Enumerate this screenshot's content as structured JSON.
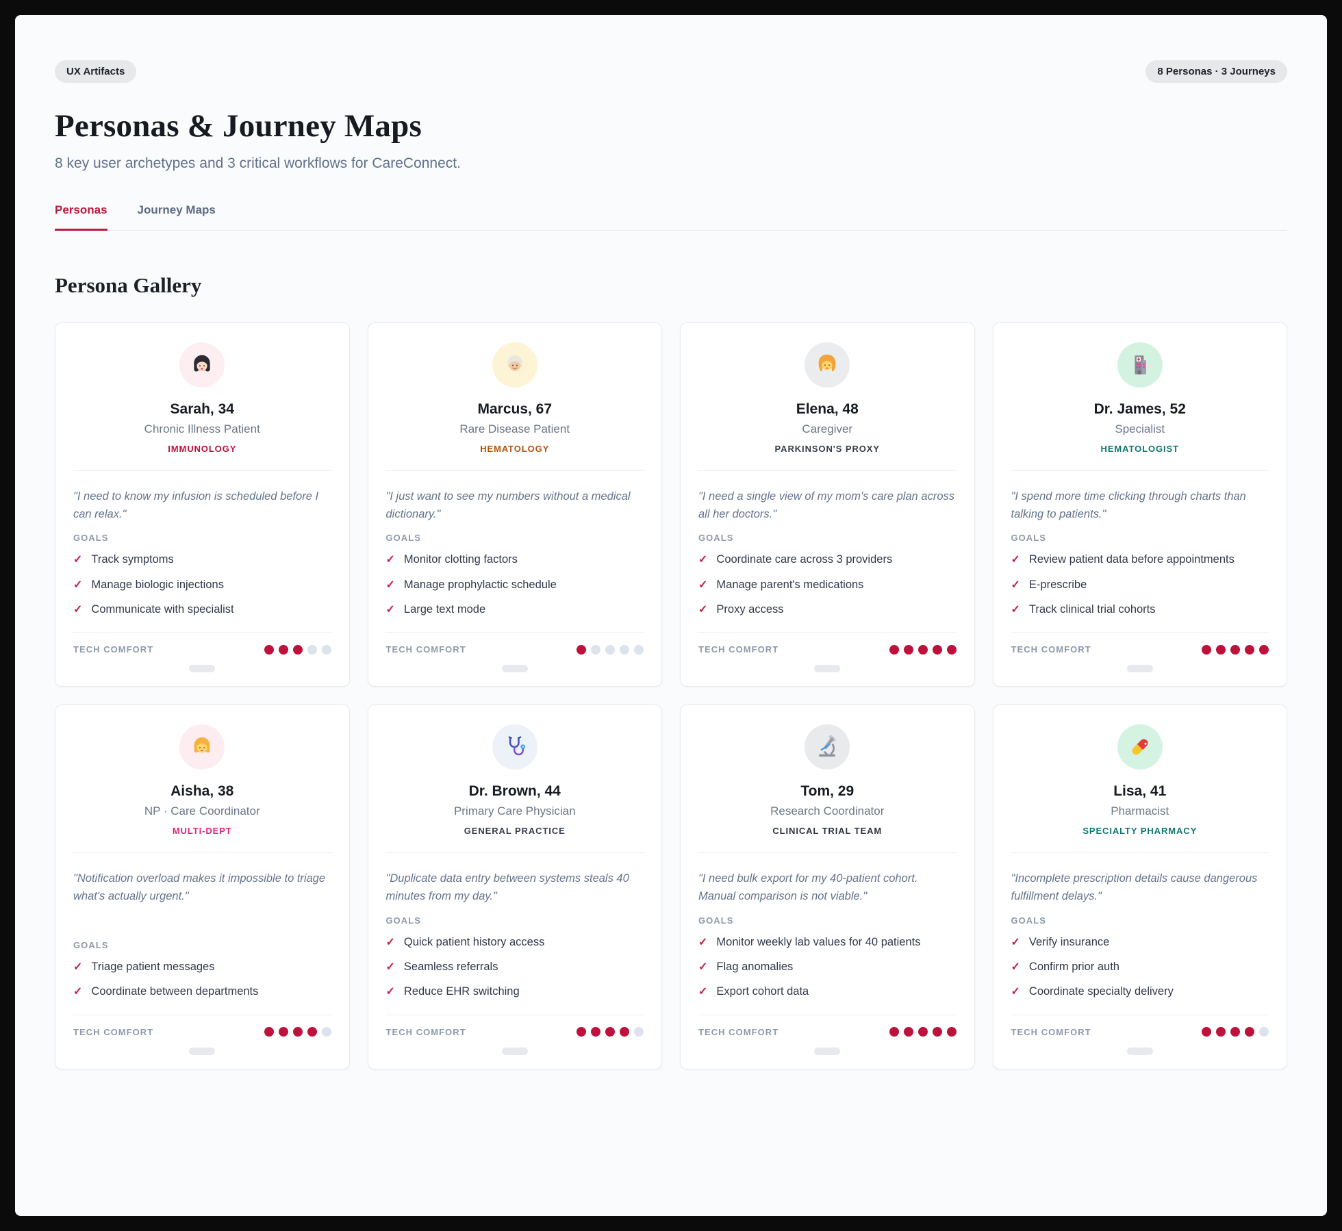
{
  "page": {
    "badge": "UX Artifacts",
    "count_badge": "8 Personas · 3 Journeys",
    "title": "Personas & Journey Maps",
    "subtitle": "8 key user archetypes and 3 critical workflows for CareConnect.",
    "tabs": [
      {
        "label": "Personas",
        "active": true
      },
      {
        "label": "Journey Maps",
        "active": false
      }
    ],
    "section_title": "Persona Gallery"
  },
  "labels": {
    "goals": "GOALS",
    "tech_comfort": "TECH COMFORT",
    "check_glyph": "✓",
    "tech_comfort_max": 5
  },
  "colors": {
    "accent": "#be123c",
    "tab_inactive": "#5d6b80",
    "dot_filled": "#be123c",
    "dot_empty": "#dce3ed",
    "page_bg": "#fafbfc",
    "card_bg": "#ffffff",
    "frame": "#0b0b0b"
  },
  "personas": [
    {
      "name": "Sarah, 34",
      "role": "Chronic Illness Patient",
      "specialty": "IMMUNOLOGY",
      "specialty_color": "#be123c",
      "avatar_icon": "icon-woman",
      "avatar_name": "woman-dark-hair-avatar-icon",
      "avatar_bg": "#fdeff1",
      "quote": "\"I need to know my infusion is scheduled before I can relax.\"",
      "goals": [
        "Track symptoms",
        "Manage biologic injections",
        "Communicate with specialist"
      ],
      "tech_comfort": 3
    },
    {
      "name": "Marcus, 67",
      "role": "Rare Disease Patient",
      "specialty": "HEMATOLOGY",
      "specialty_color": "#b45309",
      "avatar_icon": "icon-older-man",
      "avatar_name": "older-man-avatar-icon",
      "avatar_bg": "#fdf4d6",
      "quote": "\"I just want to see my numbers without a medical dictionary.\"",
      "goals": [
        "Monitor clotting factors",
        "Manage prophylactic schedule",
        "Large text mode"
      ],
      "tech_comfort": 1
    },
    {
      "name": "Elena, 48",
      "role": "Caregiver",
      "specialty": "PARKINSON'S PROXY",
      "specialty_color": "#343d4b",
      "avatar_icon": "icon-blonde-woman",
      "avatar_name": "blonde-woman-avatar-icon",
      "avatar_bg": "#ebecee",
      "quote": "\"I need a single view of my mom's care plan across all her doctors.\"",
      "goals": [
        "Coordinate care across 3 providers",
        "Manage parent's medications",
        "Proxy access"
      ],
      "tech_comfort": 5
    },
    {
      "name": "Dr. James, 52",
      "role": "Specialist",
      "specialty": "HEMATOLOGIST",
      "specialty_color": "#0f766e",
      "avatar_icon": "icon-hospital",
      "avatar_name": "hospital-avatar-icon",
      "avatar_bg": "#d3f2e0",
      "quote": "\"I spend more time clicking through charts than talking to patients.\"",
      "goals": [
        "Review patient data before appointments",
        "E-prescribe",
        "Track clinical trial cohorts"
      ],
      "tech_comfort": 5
    },
    {
      "name": "Aisha, 38",
      "role": "NP · Care Coordinator",
      "specialty": "MULTI-DEPT",
      "specialty_color": "#db2777",
      "avatar_icon": "icon-girl",
      "avatar_name": "blonde-girl-avatar-icon",
      "avatar_bg": "#fdecf0",
      "quote": "\"Notification overload makes it impossible to triage what's actually urgent.\"",
      "goals": [
        "Triage patient messages",
        "Coordinate between departments"
      ],
      "tech_comfort": 4
    },
    {
      "name": "Dr. Brown, 44",
      "role": "Primary Care Physician",
      "specialty": "GENERAL PRACTICE",
      "specialty_color": "#343d4b",
      "avatar_icon": "icon-stethoscope",
      "avatar_name": "stethoscope-avatar-icon",
      "avatar_bg": "#edf2f9",
      "quote": "\"Duplicate data entry between systems steals 40 minutes from my day.\"",
      "goals": [
        "Quick patient history access",
        "Seamless referrals",
        "Reduce EHR switching"
      ],
      "tech_comfort": 4
    },
    {
      "name": "Tom, 29",
      "role": "Research Coordinator",
      "specialty": "CLINICAL TRIAL TEAM",
      "specialty_color": "#2c3441",
      "avatar_icon": "icon-microscope",
      "avatar_name": "microscope-avatar-icon",
      "avatar_bg": "#e9eaec",
      "quote": "\"I need bulk export for my 40-patient cohort. Manual comparison is not viable.\"",
      "goals": [
        "Monitor weekly lab values for 40 patients",
        "Flag anomalies",
        "Export cohort data"
      ],
      "tech_comfort": 5
    },
    {
      "name": "Lisa, 41",
      "role": "Pharmacist",
      "specialty": "SPECIALTY PHARMACY",
      "specialty_color": "#0f766e",
      "avatar_icon": "icon-pill",
      "avatar_name": "pill-avatar-icon",
      "avatar_bg": "#d5f3e3",
      "quote": "\"Incomplete prescription details cause dangerous fulfillment delays.\"",
      "goals": [
        "Verify insurance",
        "Confirm prior auth",
        "Coordinate specialty delivery"
      ],
      "tech_comfort": 4
    }
  ]
}
